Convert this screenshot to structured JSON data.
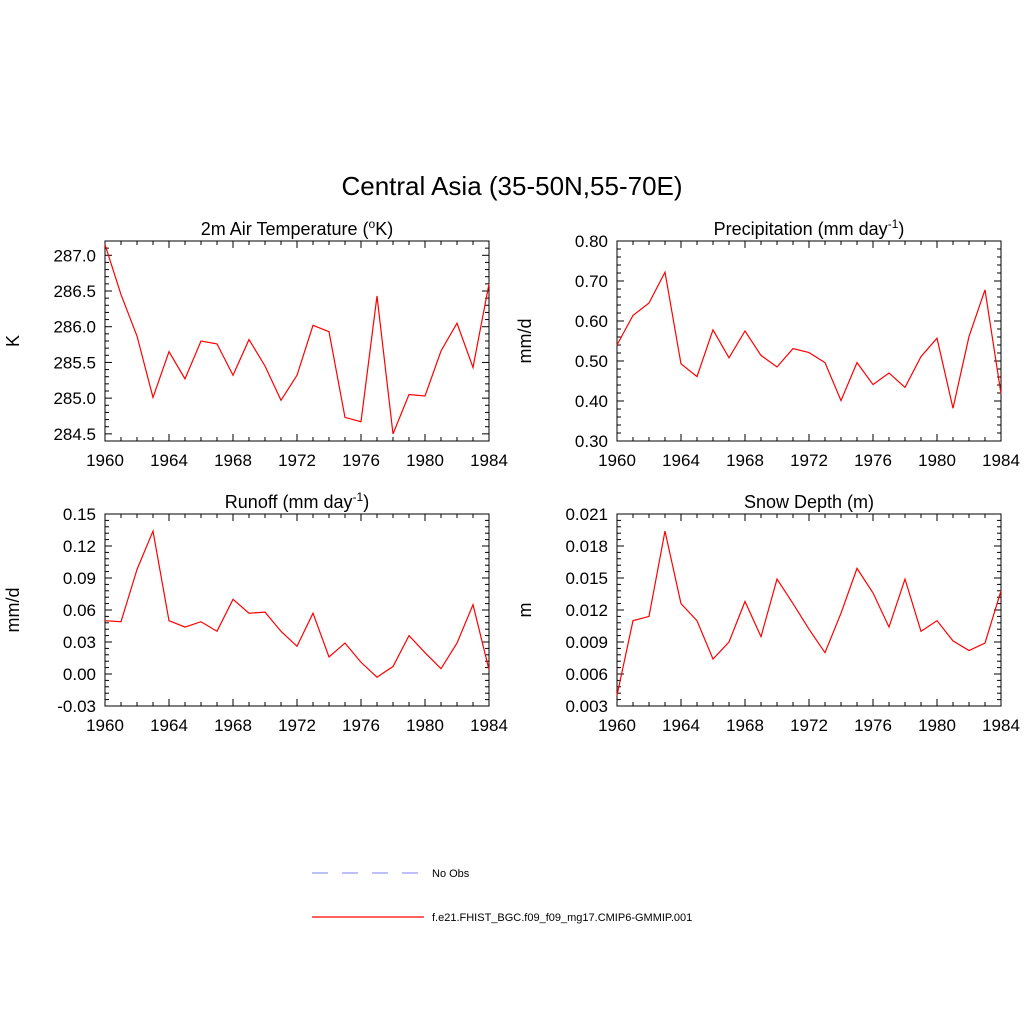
{
  "figure": {
    "title": "Central Asia (35-50N,55-70E)"
  },
  "chart_data": [
    {
      "type": "line",
      "title": "2m Air Temperature (°K)",
      "title_main": "2m Air Temperature (",
      "title_sup": "o",
      "title_tail": "K)",
      "ylabel": "K",
      "xlim": [
        1960,
        1984
      ],
      "ylim": [
        284.4,
        287.2
      ],
      "x_ticks": [
        "1960",
        "1964",
        "1968",
        "1972",
        "1976",
        "1980",
        "1984"
      ],
      "y_ticks": [
        "284.5",
        "285.0",
        "285.5",
        "286.0",
        "286.5",
        "287.0"
      ],
      "series": [
        {
          "color": "#ff0000",
          "x": [
            1960,
            1961,
            1962,
            1963,
            1964,
            1965,
            1966,
            1967,
            1968,
            1969,
            1970,
            1971,
            1972,
            1973,
            1974,
            1975,
            1976,
            1977,
            1978,
            1979,
            1980,
            1981,
            1982,
            1983,
            1984
          ],
          "values": [
            287.15,
            286.45,
            285.87,
            285.01,
            285.65,
            285.27,
            285.8,
            285.76,
            285.32,
            285.82,
            285.45,
            284.97,
            285.32,
            286.02,
            285.93,
            284.73,
            284.67,
            286.43,
            284.5,
            285.05,
            285.03,
            285.66,
            286.05,
            285.43,
            286.6
          ]
        }
      ]
    },
    {
      "type": "line",
      "title": "Precipitation (mm day-1)",
      "title_main": "Precipitation (mm day",
      "title_sup": "-1",
      "title_tail": ")",
      "ylabel": "mm/d",
      "xlim": [
        1960,
        1984
      ],
      "ylim": [
        0.3,
        0.8
      ],
      "x_ticks": [
        "1960",
        "1964",
        "1968",
        "1972",
        "1976",
        "1980",
        "1984"
      ],
      "y_ticks": [
        "0.30",
        "0.40",
        "0.50",
        "0.60",
        "0.70",
        "0.80"
      ],
      "series": [
        {
          "color": "#ff0000",
          "x": [
            1960,
            1961,
            1962,
            1963,
            1964,
            1965,
            1966,
            1967,
            1968,
            1969,
            1970,
            1971,
            1972,
            1973,
            1974,
            1975,
            1976,
            1977,
            1978,
            1979,
            1980,
            1981,
            1982,
            1983,
            1984
          ],
          "values": [
            0.54,
            0.614,
            0.645,
            0.722,
            0.493,
            0.461,
            0.578,
            0.508,
            0.575,
            0.514,
            0.485,
            0.531,
            0.521,
            0.496,
            0.401,
            0.496,
            0.441,
            0.47,
            0.434,
            0.511,
            0.557,
            0.382,
            0.561,
            0.678,
            0.418
          ]
        }
      ]
    },
    {
      "type": "line",
      "title": "Runoff (mm day-1)",
      "title_main": "Runoff (mm day",
      "title_sup": "-1",
      "title_tail": ")",
      "ylabel": "mm/d",
      "xlim": [
        1960,
        1984
      ],
      "ylim": [
        -0.03,
        0.15
      ],
      "x_ticks": [
        "1960",
        "1964",
        "1968",
        "1972",
        "1976",
        "1980",
        "1984"
      ],
      "y_ticks": [
        "-0.03",
        "0.00",
        "0.03",
        "0.06",
        "0.09",
        "0.12",
        "0.15"
      ],
      "series": [
        {
          "color": "#ff0000",
          "x": [
            1960,
            1961,
            1962,
            1963,
            1964,
            1965,
            1966,
            1967,
            1968,
            1969,
            1970,
            1971,
            1972,
            1973,
            1974,
            1975,
            1976,
            1977,
            1978,
            1979,
            1980,
            1981,
            1982,
            1983,
            1984
          ],
          "values": [
            0.05,
            0.049,
            0.098,
            0.134,
            0.05,
            0.044,
            0.049,
            0.04,
            0.07,
            0.057,
            0.058,
            0.04,
            0.026,
            0.057,
            0.016,
            0.029,
            0.011,
            -0.003,
            0.007,
            0.036,
            0.02,
            0.005,
            0.029,
            0.065,
            0.004
          ]
        }
      ]
    },
    {
      "type": "line",
      "title": "Snow Depth (m)",
      "title_main": "Snow Depth (m)",
      "title_sup": "",
      "title_tail": "",
      "ylabel": "m",
      "xlim": [
        1960,
        1984
      ],
      "ylim": [
        0.003,
        0.021
      ],
      "x_ticks": [
        "1960",
        "1964",
        "1968",
        "1972",
        "1976",
        "1980",
        "1984"
      ],
      "y_ticks": [
        "0.003",
        "0.006",
        "0.009",
        "0.012",
        "0.015",
        "0.018",
        "0.021"
      ],
      "series": [
        {
          "color": "#ff0000",
          "x": [
            1960,
            1961,
            1962,
            1963,
            1964,
            1965,
            1966,
            1967,
            1968,
            1969,
            1970,
            1971,
            1972,
            1973,
            1974,
            1975,
            1976,
            1977,
            1978,
            1979,
            1980,
            1981,
            1982,
            1983,
            1984
          ],
          "values": [
            0.004,
            0.011,
            0.0114,
            0.0194,
            0.0126,
            0.011,
            0.0074,
            0.009,
            0.0128,
            0.0095,
            0.0149,
            0.0126,
            0.0102,
            0.008,
            0.0117,
            0.0159,
            0.0136,
            0.0104,
            0.0149,
            0.01,
            0.011,
            0.0091,
            0.0082,
            0.0089,
            0.0138
          ]
        }
      ]
    }
  ],
  "legend": {
    "items": [
      {
        "label": "No Obs",
        "color": "#9999ff",
        "style": "dashed"
      },
      {
        "label": "f.e21.FHIST_BGC.f09_f09_mg17.CMIP6-GMMIP.001",
        "color": "#ff0000",
        "style": "solid"
      }
    ]
  }
}
